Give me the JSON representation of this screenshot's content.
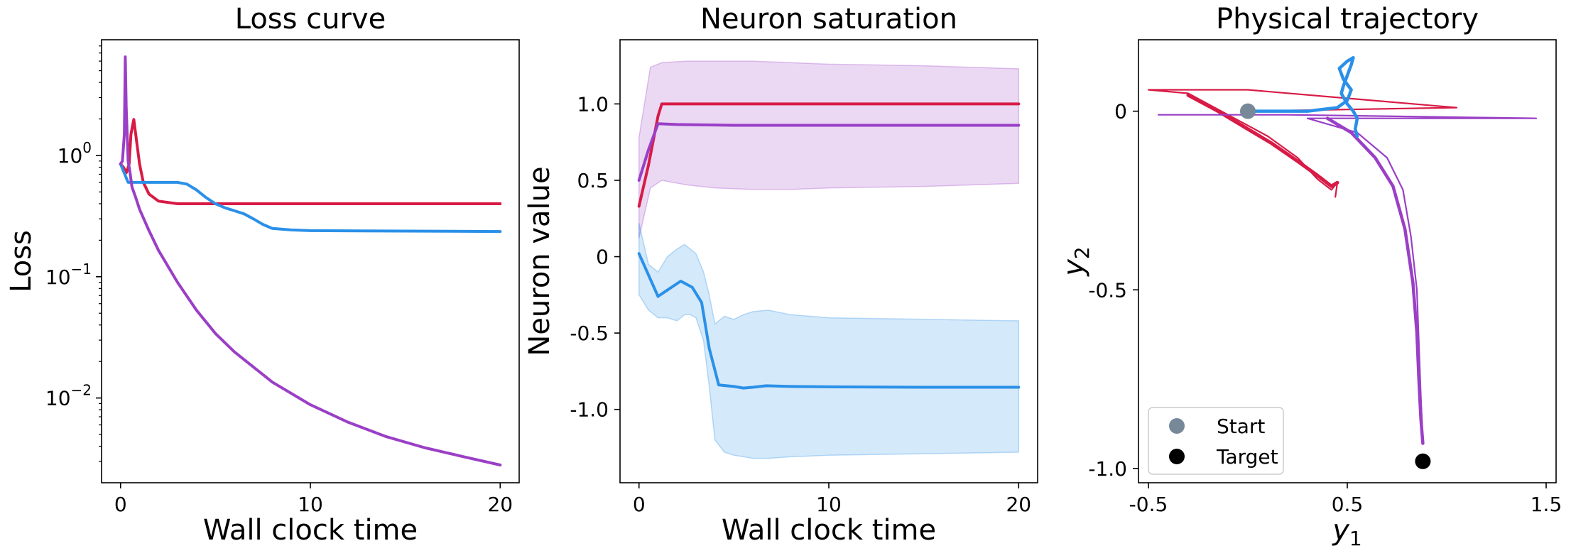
{
  "colors": {
    "crimson": "#d81b46",
    "blue": "#2a90e8",
    "purple": "#9a3fc6",
    "start": "#778899",
    "target": "#000000"
  },
  "chart_data": [
    {
      "type": "line",
      "title": "Loss curve",
      "xlabel": "Wall clock time",
      "ylabel": "Loss",
      "xlim": [
        -1,
        21
      ],
      "ylim": [
        0.002,
        9
      ],
      "yscale": "log",
      "xticks": [
        {
          "v": 0,
          "label": "0"
        },
        {
          "v": 10,
          "label": "10"
        },
        {
          "v": 20,
          "label": "20"
        }
      ],
      "yticks": [
        {
          "v": 1,
          "label": "10",
          "exp": "0"
        },
        {
          "v": 0.1,
          "label": "10",
          "exp": "−1"
        },
        {
          "v": 0.01,
          "label": "10",
          "exp": "−2"
        }
      ],
      "series": [
        {
          "color": "crimson",
          "x": [
            0,
            0.15,
            0.25,
            0.3,
            0.35,
            0.45,
            0.55,
            0.7,
            0.85,
            1.0,
            1.2,
            1.5,
            2,
            3,
            5,
            10,
            15,
            20
          ],
          "y": [
            0.85,
            0.8,
            0.75,
            0.72,
            0.75,
            0.85,
            1.5,
            1.98,
            1.3,
            0.85,
            0.6,
            0.48,
            0.42,
            0.4,
            0.4,
            0.4,
            0.4,
            0.4
          ]
        },
        {
          "color": "blue",
          "x": [
            0,
            0.4,
            1,
            2,
            3,
            3.5,
            4,
            4.5,
            5,
            5.5,
            6,
            6.5,
            7,
            7.5,
            8,
            9,
            10,
            15,
            20
          ],
          "y": [
            0.85,
            0.6,
            0.6,
            0.6,
            0.6,
            0.58,
            0.52,
            0.45,
            0.4,
            0.37,
            0.35,
            0.33,
            0.3,
            0.27,
            0.25,
            0.243,
            0.24,
            0.238,
            0.236
          ]
        },
        {
          "color": "purple",
          "x": [
            0,
            0.1,
            0.2,
            0.25,
            0.3,
            0.4,
            0.5,
            0.6,
            0.8,
            1,
            1.5,
            2,
            3,
            4,
            5,
            6,
            8,
            10,
            12,
            14,
            16,
            18,
            20
          ],
          "y": [
            0.85,
            0.9,
            1.5,
            6.5,
            2.5,
            0.9,
            0.72,
            0.55,
            0.45,
            0.36,
            0.24,
            0.165,
            0.09,
            0.053,
            0.034,
            0.024,
            0.0135,
            0.0088,
            0.0063,
            0.0048,
            0.0039,
            0.0033,
            0.0028
          ]
        }
      ]
    },
    {
      "type": "line",
      "title": "Neuron saturation",
      "xlabel": "Wall clock time",
      "ylabel": "Neuron value",
      "xlim": [
        -1,
        21
      ],
      "ylim": [
        -1.48,
        1.42
      ],
      "xticks": [
        {
          "v": 0,
          "label": "0"
        },
        {
          "v": 10,
          "label": "10"
        },
        {
          "v": 20,
          "label": "20"
        }
      ],
      "yticks": [
        {
          "v": 1.0,
          "label": "1.0"
        },
        {
          "v": 0.5,
          "label": "0.5"
        },
        {
          "v": 0,
          "label": "0"
        },
        {
          "v": -0.5,
          "label": "-0.5"
        },
        {
          "v": -1.0,
          "label": "-1.0"
        }
      ],
      "bands": [
        {
          "color": "purple",
          "x": [
            0,
            0.6,
            1.2,
            2.5,
            4,
            6,
            8,
            10,
            15,
            20
          ],
          "upper": [
            0.78,
            1.24,
            1.27,
            1.28,
            1.28,
            1.28,
            1.27,
            1.26,
            1.25,
            1.23
          ],
          "lower": [
            0.12,
            0.45,
            0.5,
            0.47,
            0.45,
            0.44,
            0.44,
            0.45,
            0.46,
            0.48
          ]
        },
        {
          "color": "blue",
          "x": [
            0,
            0.5,
            1,
            1.5,
            2,
            2.4,
            2.7,
            3,
            3.4,
            3.7,
            4,
            4.5,
            5,
            5.5,
            6,
            6.8,
            8,
            10,
            15,
            20
          ],
          "upper": [
            0.22,
            -0.05,
            -0.1,
            0.0,
            0.05,
            0.08,
            0.05,
            0.02,
            -0.1,
            -0.25,
            -0.44,
            -0.39,
            -0.41,
            -0.38,
            -0.36,
            -0.35,
            -0.38,
            -0.4,
            -0.41,
            -0.42
          ],
          "lower": [
            -0.25,
            -0.35,
            -0.4,
            -0.4,
            -0.42,
            -0.38,
            -0.38,
            -0.4,
            -0.55,
            -0.85,
            -1.2,
            -1.28,
            -1.3,
            -1.31,
            -1.32,
            -1.32,
            -1.31,
            -1.3,
            -1.29,
            -1.28
          ]
        }
      ],
      "series": [
        {
          "color": "crimson",
          "x": [
            0,
            0.5,
            1,
            1.2,
            2,
            5,
            10,
            15,
            20
          ],
          "y": [
            0.33,
            0.6,
            0.92,
            1.0,
            1.0,
            1.0,
            1.0,
            1.0,
            1.0
          ]
        },
        {
          "color": "purple",
          "x": [
            0,
            0.5,
            1,
            2,
            5,
            10,
            15,
            20
          ],
          "y": [
            0.5,
            0.7,
            0.87,
            0.865,
            0.86,
            0.86,
            0.86,
            0.86
          ]
        },
        {
          "color": "blue",
          "x": [
            0,
            0.5,
            1,
            1.6,
            2.2,
            2.8,
            3.3,
            3.7,
            4.2,
            5,
            5.5,
            6,
            6.7,
            8,
            10,
            15,
            20
          ],
          "y": [
            0.02,
            -0.12,
            -0.26,
            -0.21,
            -0.16,
            -0.2,
            -0.3,
            -0.6,
            -0.84,
            -0.85,
            -0.86,
            -0.855,
            -0.845,
            -0.85,
            -0.852,
            -0.855,
            -0.855
          ]
        }
      ]
    },
    {
      "type": "line",
      "title": "Physical trajectory",
      "xlabel": "y",
      "xlabel_sub": "1",
      "ylabel": "y",
      "ylabel_sub": "2",
      "xlim": [
        -0.55,
        1.55
      ],
      "ylim": [
        -1.04,
        0.2
      ],
      "xticks": [
        {
          "v": -0.5,
          "label": "-0.5"
        },
        {
          "v": 0.5,
          "label": "0.5"
        },
        {
          "v": 1.5,
          "label": "1.5"
        }
      ],
      "yticks": [
        {
          "v": 0,
          "label": "0"
        },
        {
          "v": -0.5,
          "label": "-0.5"
        },
        {
          "v": -1.0,
          "label": "-1.0"
        }
      ],
      "legend_position": "lower-left",
      "legend": [
        {
          "label": "Start",
          "color": "start"
        },
        {
          "label": "Target",
          "color": "target"
        }
      ],
      "markers": [
        {
          "name": "start",
          "x": 0,
          "y": 0,
          "color": "start"
        },
        {
          "name": "target",
          "x": 0.88,
          "y": -0.98,
          "color": "target"
        }
      ],
      "series": [
        {
          "color": "crimson",
          "width": 2.2,
          "x": [
            0,
            1.05,
            0.0,
            -0.5,
            -0.3,
            -0.1,
            0.1,
            0.25,
            0.35,
            0.42,
            0.45,
            0.44
          ],
          "y": [
            0,
            0.01,
            0.06,
            0.06,
            0.05,
            -0.01,
            -0.07,
            -0.13,
            -0.19,
            -0.22,
            -0.2,
            -0.24
          ]
        },
        {
          "color": "crimson",
          "width": 5,
          "x": [
            -0.3,
            -0.15,
            0.0,
            0.12,
            0.25,
            0.35,
            0.42,
            0.45
          ],
          "y": [
            0.045,
            0.0,
            -0.05,
            -0.09,
            -0.14,
            -0.18,
            -0.21,
            -0.2
          ]
        },
        {
          "color": "purple",
          "width": 2.2,
          "x": [
            -0.45,
            0.2,
            1.45,
            0.3,
            0.55,
            0.7,
            0.78,
            0.82,
            0.85,
            0.86,
            0.87,
            0.88
          ],
          "y": [
            -0.01,
            -0.01,
            -0.02,
            -0.02,
            -0.06,
            -0.13,
            -0.22,
            -0.35,
            -0.5,
            -0.65,
            -0.8,
            -0.92
          ]
        },
        {
          "color": "purple",
          "width": 4.5,
          "x": [
            0.4,
            0.52,
            0.64,
            0.73,
            0.79,
            0.83,
            0.85,
            0.86,
            0.87,
            0.88
          ],
          "y": [
            -0.02,
            -0.06,
            -0.13,
            -0.21,
            -0.33,
            -0.48,
            -0.62,
            -0.75,
            -0.86,
            -0.93
          ]
        },
        {
          "color": "blue",
          "width": 4.5,
          "x": [
            0.0,
            0.15,
            0.3,
            0.45,
            0.5,
            0.52,
            0.48,
            0.46,
            0.5,
            0.53,
            0.52,
            0.5,
            0.48,
            0.47,
            0.5,
            0.53,
            0.55,
            0.54,
            0.55
          ],
          "y": [
            0,
            0.0,
            0.0,
            0.01,
            0.03,
            0.06,
            0.09,
            0.12,
            0.14,
            0.15,
            0.13,
            0.1,
            0.07,
            0.05,
            0.02,
            0.0,
            -0.02,
            -0.05,
            -0.07
          ]
        }
      ]
    }
  ]
}
